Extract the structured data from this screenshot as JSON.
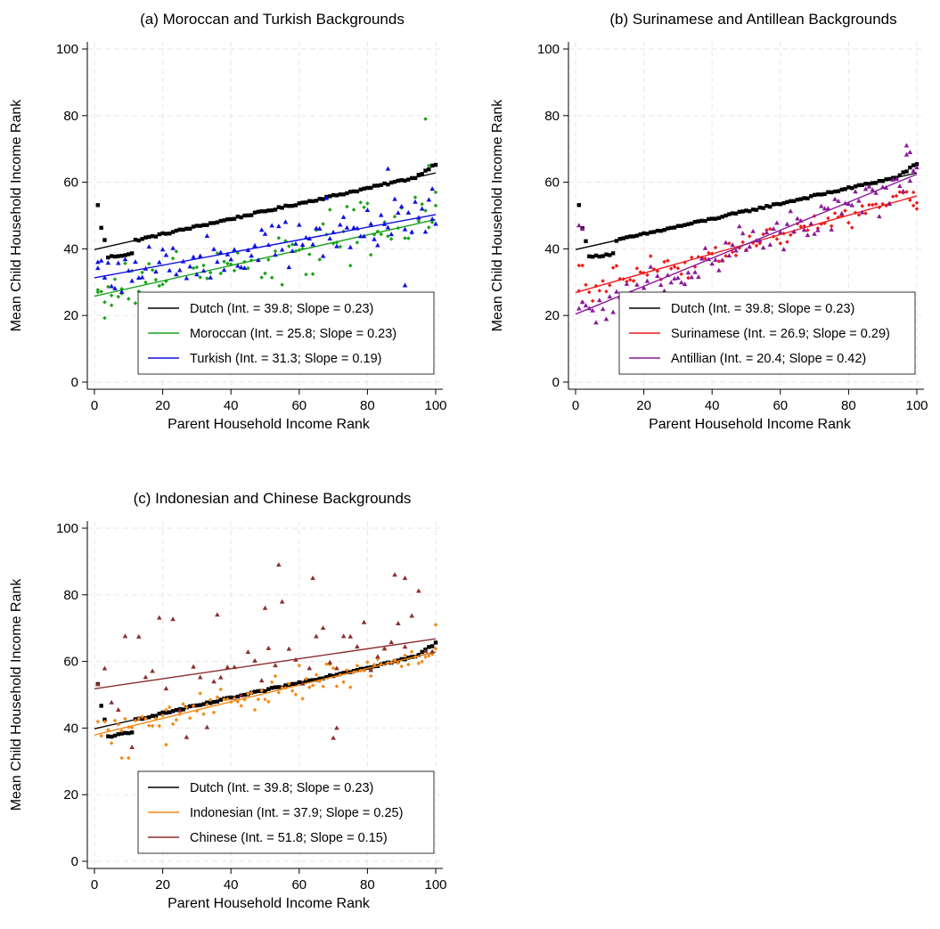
{
  "chart_data": [
    {
      "type": "scatter",
      "title": "(a) Moroccan and Turkish Backgrounds",
      "xlabel": "Parent Household Income Rank",
      "ylabel": "Mean Child Household Income Rank",
      "xlim": [
        0,
        100
      ],
      "ylim": [
        0,
        100
      ],
      "xticks": [
        "0",
        "20",
        "40",
        "60",
        "80",
        "100"
      ],
      "yticks": [
        "0",
        "20",
        "40",
        "60",
        "80",
        "100"
      ],
      "grid": true,
      "legend_position": "bottom-right",
      "series": [
        {
          "name": "Dutch",
          "legend": "Dutch (Int. = 39.8; Slope = 0.23)",
          "color": "#000000",
          "marker": "square",
          "intercept": 39.8,
          "slope": 0.23,
          "noise": 0.6,
          "start_bump": true
        },
        {
          "name": "Moroccan",
          "legend": "Moroccan (Int. = 25.8; Slope = 0.23)",
          "color": "#1aa31a",
          "marker": "diamond",
          "intercept": 25.8,
          "slope": 0.23,
          "noise": 6.5,
          "points": [
            [
              1,
              27
            ],
            [
              3,
              24
            ],
            [
              5,
              26
            ],
            [
              8,
              28
            ],
            [
              97,
              79
            ],
            [
              98,
              65
            ],
            [
              100,
              57
            ],
            [
              53,
              23
            ]
          ]
        },
        {
          "name": "Turkish",
          "legend": "Turkish (Int. = 31.3; Slope = 0.19)",
          "color": "#1010e0",
          "marker": "triangle",
          "intercept": 31.3,
          "slope": 0.19,
          "noise": 5.5,
          "points": [
            [
              1,
              36
            ],
            [
              86,
              64
            ],
            [
              91,
              29
            ],
            [
              99,
              58
            ]
          ]
        }
      ]
    },
    {
      "type": "scatter",
      "title": "(b) Surinamese and Antillean Backgrounds",
      "xlabel": "Parent Household Income Rank",
      "ylabel": "Mean Child Household Income Rank",
      "xlim": [
        0,
        100
      ],
      "ylim": [
        0,
        100
      ],
      "xticks": [
        "0",
        "20",
        "40",
        "60",
        "80",
        "100"
      ],
      "yticks": [
        "0",
        "20",
        "40",
        "60",
        "80",
        "100"
      ],
      "grid": true,
      "legend_position": "bottom-right",
      "series": [
        {
          "name": "Dutch",
          "legend": "Dutch (Int. = 39.8; Slope = 0.23)",
          "color": "#000000",
          "marker": "square",
          "intercept": 39.8,
          "slope": 0.23,
          "noise": 0.6,
          "start_bump": true
        },
        {
          "name": "Surinamese",
          "legend": "Surinamese (Int. = 26.9; Slope = 0.29)",
          "color": "#ee1a1a",
          "marker": "diamond",
          "intercept": 26.9,
          "slope": 0.29,
          "noise": 2.8,
          "points": [
            [
              1,
              35
            ],
            [
              2,
              35
            ],
            [
              99,
              53
            ],
            [
              100,
              52
            ]
          ]
        },
        {
          "name": "Antillian",
          "legend": "Antillian (Int. = 20.4; Slope = 0.42)",
          "color": "#8a1a9a",
          "marker": "triangle",
          "intercept": 20.4,
          "slope": 0.42,
          "noise": 4.0,
          "points": [
            [
              1,
              47
            ],
            [
              2,
              46
            ],
            [
              97,
              71
            ],
            [
              98,
              69
            ],
            [
              30,
              23
            ]
          ]
        }
      ]
    },
    {
      "type": "scatter",
      "title": "(c) Indonesian and Chinese Backgrounds",
      "xlabel": "Parent Household Income Rank",
      "ylabel": "Mean Child Household Income Rank",
      "xlim": [
        0,
        100
      ],
      "ylim": [
        0,
        100
      ],
      "xticks": [
        "0",
        "20",
        "40",
        "60",
        "80",
        "100"
      ],
      "yticks": [
        "0",
        "20",
        "40",
        "60",
        "80",
        "100"
      ],
      "grid": true,
      "legend_position": "bottom-right",
      "series": [
        {
          "name": "Dutch",
          "legend": "Dutch (Int. = 39.8; Slope = 0.23)",
          "color": "#000000",
          "marker": "square",
          "intercept": 39.8,
          "slope": 0.23,
          "noise": 0.6,
          "start_bump": true
        },
        {
          "name": "Indonesian",
          "legend": "Indonesian (Int. = 37.9; Slope = 0.25)",
          "color": "#f28a1a",
          "marker": "diamond",
          "intercept": 37.9,
          "slope": 0.25,
          "noise": 3.5,
          "points": [
            [
              1,
              53
            ],
            [
              8,
              31
            ],
            [
              10,
              31
            ],
            [
              21,
              35
            ],
            [
              100,
              71
            ]
          ]
        },
        {
          "name": "Chinese",
          "legend": "Chinese (Int. = 51.8; Slope = 0.15)",
          "color": "#8b2e2e",
          "marker": "triangle",
          "intercept": 51.8,
          "slope": 0.15,
          "noise": 11,
          "sample_step": 2,
          "points": [
            [
              54,
              89
            ],
            [
              64,
              85
            ],
            [
              88,
              86
            ],
            [
              91,
              85
            ],
            [
              70,
              37
            ],
            [
              71,
              40
            ],
            [
              36,
              74
            ],
            [
              50,
              76
            ]
          ]
        }
      ]
    }
  ]
}
